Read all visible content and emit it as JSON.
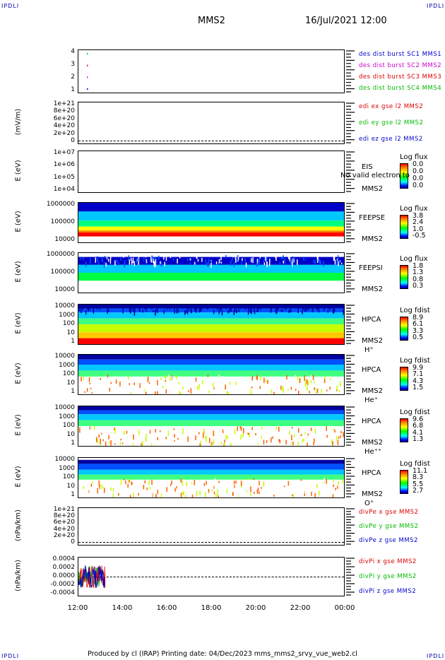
{
  "corners": {
    "top_left": "IPDLI",
    "top_right": "IPDLI",
    "bottom_left": "IPDLI",
    "bottom_right": "IPDLI"
  },
  "header": {
    "title": "MMS2",
    "datetime": "16/Jul/2021 12:00"
  },
  "colors": {
    "red": "#dd0000",
    "green": "#00bb00",
    "blue": "#0000cc",
    "magenta": "#cc00cc"
  },
  "panels": [
    {
      "id": "burst",
      "yticks": [
        "4",
        "3",
        "2",
        "1"
      ],
      "legend": [
        {
          "text": "des dist burst SC1 MMS1",
          "color": "#0000cc"
        },
        {
          "text": "des dist burst SC2 MMS2",
          "color": "#cc00cc"
        },
        {
          "text": "des dist burst SC3 MMS3",
          "color": "#dd0000"
        },
        {
          "text": "des dist burst SC4 MMS4",
          "color": "#00bb00"
        }
      ]
    },
    {
      "id": "edi",
      "ylabel": "(mV/m)",
      "yticks": [
        "1e+21",
        "8e+20",
        "6e+20",
        "4e+20",
        "2e+20",
        "0"
      ],
      "legend": [
        {
          "text": "edi ex gse l2 MMS2",
          "color": "#dd0000"
        },
        {
          "text": "edi ey gse l2 MMS2",
          "color": "#00bb00"
        },
        {
          "text": "edi ez gse l2 MMS2",
          "color": "#0000cc"
        }
      ]
    },
    {
      "id": "eis",
      "ylabel": "E (eV)",
      "yticks": [
        "1e+07",
        "1e+06",
        "1e+05",
        "1e+04"
      ],
      "inst": "EIS",
      "inst2": "MMS2",
      "cbar_title": "Log flux",
      "cbar_ticks": [
        "0.0",
        "0.0",
        "0.0",
        "0.0"
      ],
      "overlay": "No valid electron to"
    },
    {
      "id": "feepse",
      "ylabel": "E (eV)",
      "yticks": [
        "1000000",
        "100000",
        "10000"
      ],
      "inst": "FEEPSE",
      "inst2": "MMS2",
      "cbar_title": "Log flux",
      "cbar_ticks": [
        "3.8",
        "2.4",
        "1.0",
        "-0.5"
      ]
    },
    {
      "id": "feepsi",
      "ylabel": "E (eV)",
      "yticks": [
        "1000000",
        "100000",
        "10000"
      ],
      "inst": "FEEPSI",
      "inst2": "MMS2",
      "cbar_title": "Log flux",
      "cbar_ticks": [
        "1.8",
        "1.3",
        "0.8",
        "0.3"
      ]
    },
    {
      "id": "hpca_h",
      "ylabel": "E (eV)",
      "yticks": [
        "10000",
        "1000",
        "100",
        "10",
        "1"
      ],
      "inst": "HPCA",
      "inst2": "MMS2",
      "species": "H⁺",
      "cbar_title": "Log fdist",
      "cbar_ticks": [
        "8.9",
        "6.1",
        "3.3",
        "0.5"
      ]
    },
    {
      "id": "hpca_he",
      "ylabel": "E (eV)",
      "yticks": [
        "10000",
        "1000",
        "100",
        "10",
        "1"
      ],
      "inst": "HPCA",
      "inst2": "MMS2",
      "species": "He⁺",
      "cbar_title": "Log fdist",
      "cbar_ticks": [
        "9.9",
        "7.1",
        "4.3",
        "1.5"
      ]
    },
    {
      "id": "hpca_hepp",
      "ylabel": "E (eV)",
      "yticks": [
        "10000",
        "1000",
        "100",
        "10",
        "1"
      ],
      "inst": "HPCA",
      "inst2": "MMS2",
      "species": "He⁺⁺",
      "cbar_title": "Log fdist",
      "cbar_ticks": [
        "9.6",
        "6.8",
        "4.1",
        "1.3"
      ]
    },
    {
      "id": "hpca_o",
      "ylabel": "E (eV)",
      "yticks": [
        "10000",
        "1000",
        "100",
        "10",
        "1"
      ],
      "inst": "HPCA",
      "inst2": "MMS2",
      "species": "O⁺",
      "cbar_title": "Log fdist",
      "cbar_ticks": [
        "11.1",
        "8.3",
        "5.5",
        "2.7"
      ]
    },
    {
      "id": "divpe",
      "ylabel": "(nPa/km)",
      "yticks": [
        "1e+21",
        "8e+20",
        "6e+20",
        "4e+20",
        "2e+20",
        "0"
      ],
      "legend": [
        {
          "text": "divPe x gse MMS2",
          "color": "#dd0000"
        },
        {
          "text": "divPe y gse MMS2",
          "color": "#00bb00"
        },
        {
          "text": "divPe z gse MMS2",
          "color": "#0000cc"
        }
      ]
    },
    {
      "id": "divpi",
      "ylabel": "(nPa/km)",
      "yticks": [
        "0.0004",
        "0.0002",
        "0.0000",
        "-0.0002",
        "-0.0004"
      ],
      "legend": [
        {
          "text": "divPi x gse MMS2",
          "color": "#dd0000"
        },
        {
          "text": "divPi y gse MMS2",
          "color": "#00bb00"
        },
        {
          "text": "divPi z gse MMS2",
          "color": "#0000cc"
        }
      ]
    }
  ],
  "chart_data": {
    "type": "heatmap",
    "title": "MMS2",
    "x": [
      "12:00",
      "14:00",
      "16:00",
      "18:00",
      "20:00",
      "22:00",
      "00:00"
    ],
    "burst_markers": [
      {
        "time": "12:20",
        "sc": 4,
        "color": "#00bb00"
      },
      {
        "time": "12:20",
        "sc": 3,
        "color": "#dd0000"
      },
      {
        "time": "12:20",
        "sc": 2,
        "color": "#cc00cc"
      },
      {
        "time": "12:20",
        "sc": 1,
        "color": "#0000cc"
      }
    ],
    "divpi_range": {
      "start": "12:00",
      "end": "13:15",
      "ylim": [
        -0.0005,
        0.0005
      ]
    }
  },
  "footer": "Produced by cl (IRAP)    Printing date: 04/Dec/2023    mms_mms2_srvy_vue_web2.cl"
}
